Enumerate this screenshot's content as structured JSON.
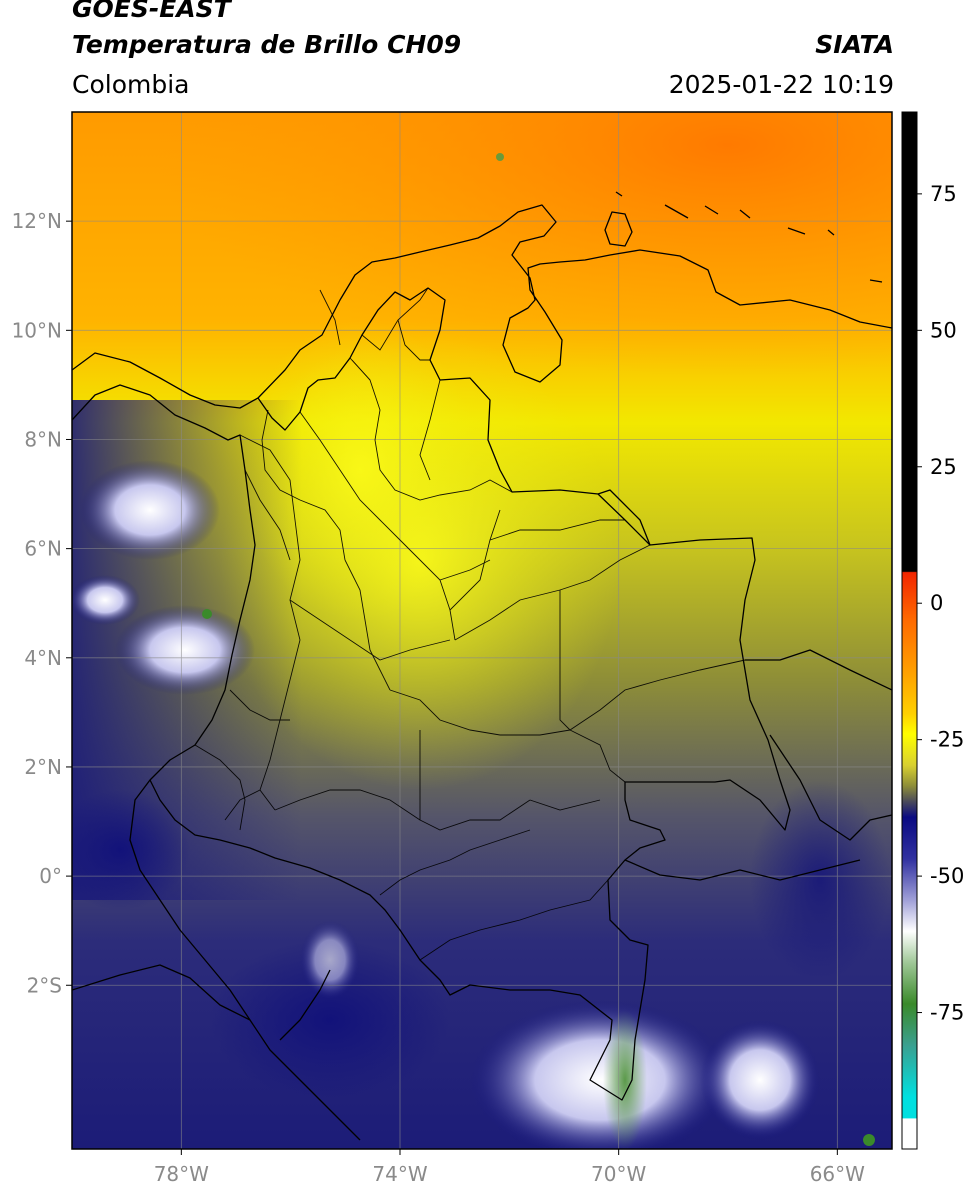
{
  "header": {
    "satellite": "GOES-EAST",
    "product": "Temperatura de Brillo CH09",
    "organization": "SIATA",
    "region": "Colombia",
    "datetime": "2025-01-22 10:19"
  },
  "map": {
    "lon_range": [
      -80,
      -65
    ],
    "lat_range": [
      -5,
      14
    ],
    "lon_ticks": [
      "78°W",
      "74°W",
      "70°W",
      "66°W"
    ],
    "lat_ticks": [
      "12°N",
      "10°N",
      "8°N",
      "6°N",
      "4°N",
      "2°N",
      "0°",
      "2°S"
    ],
    "grid": true
  },
  "colorbar": {
    "tick_labels": [
      "75",
      "50",
      "25",
      "0",
      "-25",
      "-50",
      "-75"
    ],
    "range": [
      -100,
      90
    ],
    "units": "",
    "colors": {
      "above_10": "#000000",
      "warm": "#f22500",
      "orange": "#ff8c00",
      "yellow": "#ffff00",
      "olive": "#9a9a33",
      "dark_grey": "#4a4a5a",
      "navy": "#10107e",
      "white": "#ffffff",
      "green": "#3a8a2a",
      "cyan": "#00e0e0"
    }
  }
}
